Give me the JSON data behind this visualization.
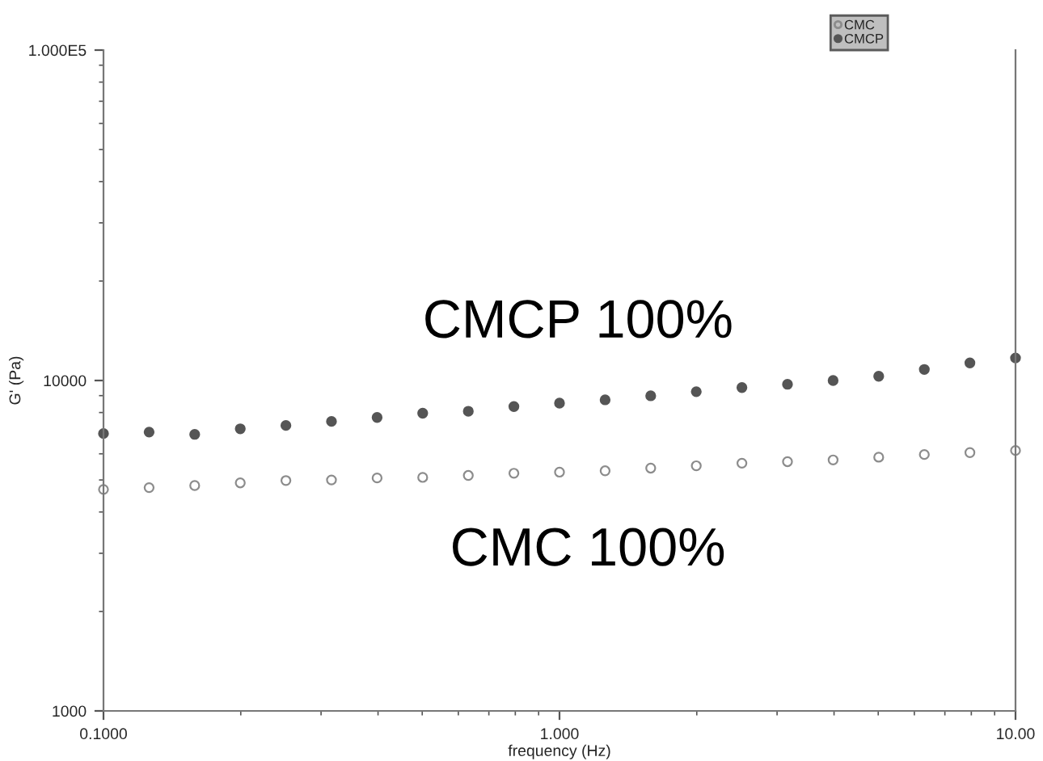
{
  "chart_data": {
    "type": "scatter",
    "xlabel": "frequency (Hz)",
    "ylabel": "G' (Pa)",
    "log": "xy",
    "x": [
      0.1,
      0.1259,
      0.1585,
      0.1995,
      0.2512,
      0.3162,
      0.3981,
      0.5012,
      0.631,
      0.7943,
      1.0,
      1.259,
      1.585,
      1.995,
      2.512,
      3.162,
      3.981,
      5.012,
      6.31,
      7.943,
      10.0
    ],
    "series": [
      {
        "name": "CMC",
        "color": "#8c8c8c",
        "marker": "circle",
        "values": [
          4680,
          4740,
          4810,
          4900,
          4980,
          5000,
          5070,
          5090,
          5160,
          5240,
          5280,
          5330,
          5430,
          5520,
          5620,
          5680,
          5750,
          5860,
          5970,
          6050,
          6140
        ]
      },
      {
        "name": "CMCP",
        "color": "#555555",
        "marker": "circle",
        "values": [
          6910,
          6980,
          6870,
          7140,
          7310,
          7520,
          7730,
          7960,
          8070,
          8340,
          8540,
          8740,
          8990,
          9250,
          9520,
          9740,
          10000,
          10300,
          10800,
          11300,
          11700
        ]
      }
    ],
    "xlim": [
      0.1,
      10
    ],
    "xticks": [
      {
        "value": 0.1,
        "label": "0.1000"
      },
      {
        "value": 1,
        "label": "1.000"
      },
      {
        "value": 10,
        "label": "10.00"
      }
    ],
    "ylim": [
      1000,
      100000
    ],
    "yticks": [
      1000,
      10000,
      {
        "value": 100000,
        "label": "1.000E5"
      }
    ],
    "grid": false,
    "legend": "top right",
    "annotations": [
      "CMCP 100%",
      "CMC 100%"
    ]
  }
}
